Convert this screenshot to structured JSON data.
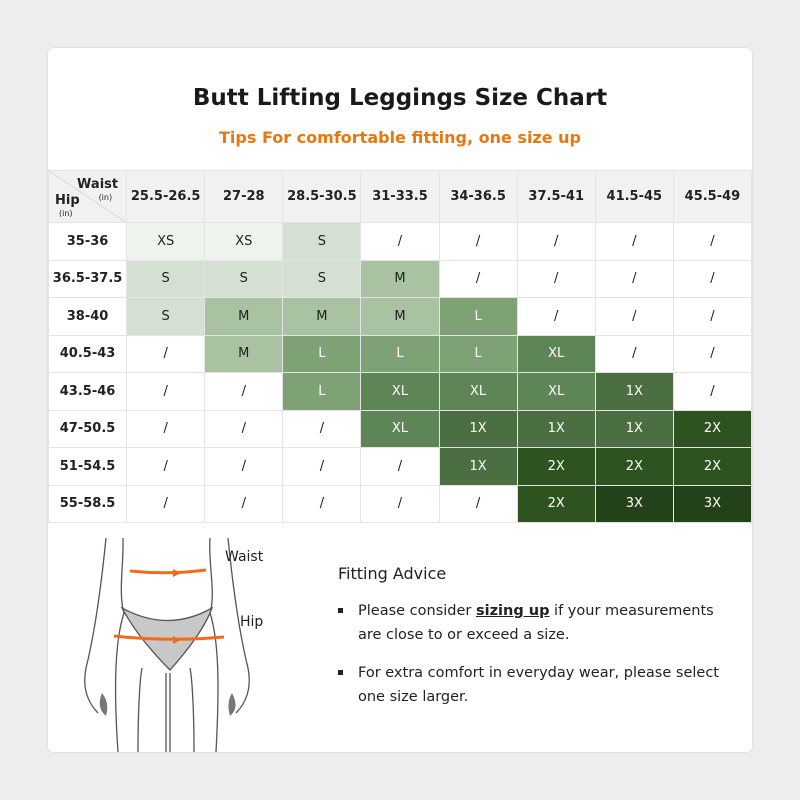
{
  "title": "Butt Lifting Leggings Size Chart",
  "subtitle": "Tips For comfortable fitting, one size up",
  "table": {
    "corner": {
      "waist": "Waist",
      "waist_unit": "(in)",
      "hip": "Hip",
      "hip_unit": "(in)"
    },
    "waist_columns": [
      "25.5-26.5",
      "27-28",
      "28.5-30.5",
      "31-33.5",
      "34-36.5",
      "37.5-41",
      "41.5-45",
      "45.5-49"
    ],
    "rows": [
      {
        "hip": "35-36",
        "sizes": [
          "XS",
          "XS",
          "S",
          "/",
          "/",
          "/",
          "/",
          "/"
        ]
      },
      {
        "hip": "36.5-37.5",
        "sizes": [
          "S",
          "S",
          "S",
          "M",
          "/",
          "/",
          "/",
          "/"
        ]
      },
      {
        "hip": "38-40",
        "sizes": [
          "S",
          "M",
          "M",
          "M",
          "L",
          "/",
          "/",
          "/"
        ]
      },
      {
        "hip": "40.5-43",
        "sizes": [
          "/",
          "M",
          "L",
          "L",
          "L",
          "XL",
          "/",
          "/"
        ]
      },
      {
        "hip": "43.5-46",
        "sizes": [
          "/",
          "/",
          "L",
          "XL",
          "XL",
          "XL",
          "1X",
          "/"
        ]
      },
      {
        "hip": "47-50.5",
        "sizes": [
          "/",
          "/",
          "/",
          "XL",
          "1X",
          "1X",
          "1X",
          "2X"
        ]
      },
      {
        "hip": "51-54.5",
        "sizes": [
          "/",
          "/",
          "/",
          "/",
          "1X",
          "2X",
          "2X",
          "2X"
        ]
      },
      {
        "hip": "55-58.5",
        "sizes": [
          "/",
          "/",
          "/",
          "/",
          "/",
          "2X",
          "3X",
          "3X"
        ]
      }
    ],
    "size_colors": {
      "XS": "#eff3ee",
      "S": "#d4e0d1",
      "M": "#a8c2a2",
      "L": "#7ea175",
      "XL": "#5e8555",
      "1X": "#4b6f42",
      "2X": "#2f5320",
      "3X": "#24421a",
      "/": "#ffffff"
    }
  },
  "figure": {
    "waist_label": "Waist",
    "hip_label": "Hip",
    "arrow_color": "#f26b1d"
  },
  "advice": {
    "heading": "Fitting Advice",
    "item1_pre": "Please consider ",
    "item1_em": "sizing up",
    "item1_post": " if your measurements are close to or exceed a size.",
    "item2": "For extra comfort in everyday wear, please select one size larger."
  }
}
